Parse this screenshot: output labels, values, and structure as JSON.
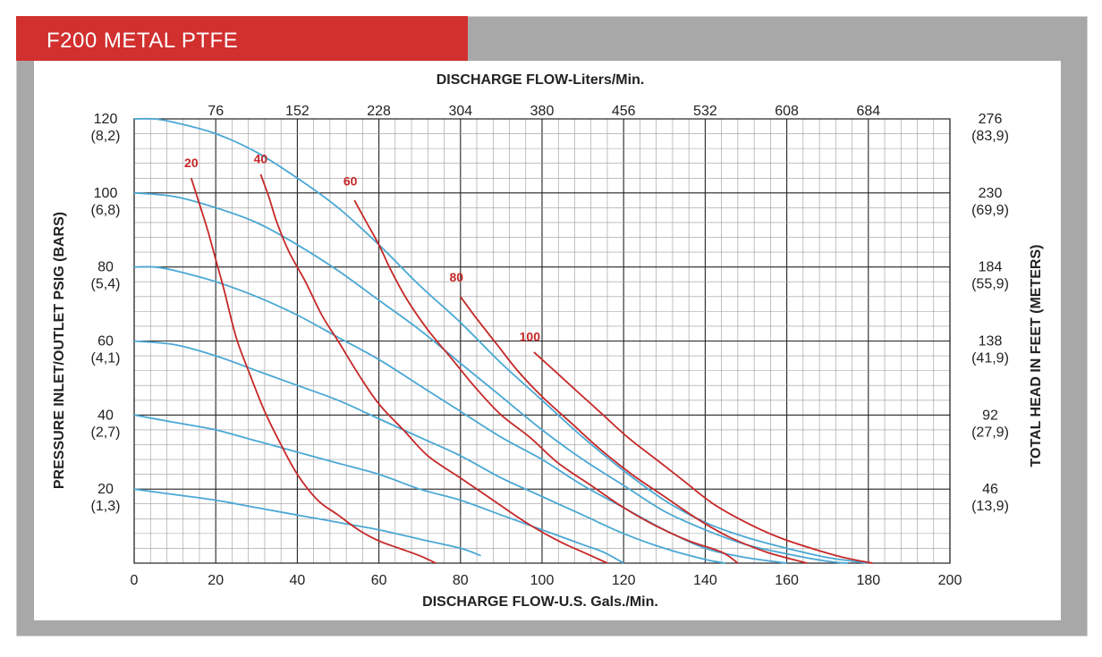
{
  "title": "F200 METAL PTFE",
  "colors": {
    "title_bg": "#d22f2f",
    "frame": "#a8a8a8",
    "grid": "#000000",
    "blue": "#4aa8d4",
    "red": "#c62828"
  },
  "chart_data": {
    "type": "line",
    "top_axis_label": "DISCHARGE FLOW-Liters/Min.",
    "top_ticks": [
      "76",
      "152",
      "228",
      "304",
      "380",
      "456",
      "532",
      "608",
      "684"
    ],
    "xlabel": "DISCHARGE FLOW-U.S. Gals./Min.",
    "x_ticks": [
      "0",
      "20",
      "40",
      "60",
      "80",
      "100",
      "120",
      "140",
      "160",
      "180",
      "200"
    ],
    "xlim": [
      0,
      200
    ],
    "ylabel_left": "PRESSURE INLET/OUTLET PSIG (BARS)",
    "left_ticks": [
      {
        "value": "120",
        "sub": "(8,2)"
      },
      {
        "value": "100",
        "sub": "(6,8)"
      },
      {
        "value": "80",
        "sub": "(5,4)"
      },
      {
        "value": "60",
        "sub": "(4,1)"
      },
      {
        "value": "40",
        "sub": "(2,7)"
      },
      {
        "value": "20",
        "sub": "(1,3)"
      }
    ],
    "ylim": [
      0,
      120
    ],
    "ylabel_right": "TOTAL HEAD IN FEET (METERS)",
    "right_ticks": [
      {
        "value": "276",
        "sub": "(83,9)"
      },
      {
        "value": "230",
        "sub": "(69,9)"
      },
      {
        "value": "184",
        "sub": "(55,9)"
      },
      {
        "value": "138",
        "sub": "(41,9)"
      },
      {
        "value": "92",
        "sub": "(27,9)"
      },
      {
        "value": "46",
        "sub": "(13,9)"
      }
    ],
    "grid": true,
    "pressure_curves": [
      {
        "points": [
          [
            0,
            120
          ],
          [
            5,
            120
          ],
          [
            10,
            119
          ],
          [
            20,
            116
          ],
          [
            30,
            111
          ],
          [
            40,
            104
          ],
          [
            50,
            96
          ],
          [
            60,
            86
          ],
          [
            70,
            75
          ],
          [
            80,
            65
          ],
          [
            90,
            54
          ],
          [
            100,
            44
          ],
          [
            110,
            34
          ],
          [
            120,
            25
          ],
          [
            130,
            17
          ],
          [
            140,
            11
          ],
          [
            150,
            7
          ],
          [
            160,
            4
          ],
          [
            170,
            1.5
          ],
          [
            180,
            0
          ]
        ]
      },
      {
        "points": [
          [
            0,
            100
          ],
          [
            10,
            99
          ],
          [
            20,
            96
          ],
          [
            30,
            92
          ],
          [
            40,
            86
          ],
          [
            50,
            79
          ],
          [
            60,
            71
          ],
          [
            70,
            63
          ],
          [
            80,
            54
          ],
          [
            90,
            45
          ],
          [
            100,
            36
          ],
          [
            110,
            28
          ],
          [
            120,
            21
          ],
          [
            130,
            14
          ],
          [
            140,
            9
          ],
          [
            150,
            5
          ],
          [
            160,
            2.5
          ],
          [
            170,
            0.5
          ],
          [
            175,
            0
          ]
        ]
      },
      {
        "points": [
          [
            0,
            80
          ],
          [
            5,
            80
          ],
          [
            10,
            79
          ],
          [
            20,
            76
          ],
          [
            30,
            72
          ],
          [
            40,
            67
          ],
          [
            50,
            61
          ],
          [
            60,
            55
          ],
          [
            70,
            48
          ],
          [
            80,
            41
          ],
          [
            90,
            34
          ],
          [
            100,
            28
          ],
          [
            110,
            21
          ],
          [
            120,
            15
          ],
          [
            130,
            9
          ],
          [
            140,
            4
          ],
          [
            150,
            1.5
          ],
          [
            160,
            0
          ]
        ]
      },
      {
        "points": [
          [
            0,
            60
          ],
          [
            10,
            59
          ],
          [
            20,
            56
          ],
          [
            30,
            52
          ],
          [
            40,
            48
          ],
          [
            50,
            44
          ],
          [
            60,
            39
          ],
          [
            70,
            34
          ],
          [
            80,
            29
          ],
          [
            90,
            23
          ],
          [
            100,
            18
          ],
          [
            110,
            13
          ],
          [
            120,
            8
          ],
          [
            130,
            4
          ],
          [
            140,
            1
          ],
          [
            145,
            0
          ]
        ]
      },
      {
        "points": [
          [
            0,
            40
          ],
          [
            10,
            38
          ],
          [
            20,
            36
          ],
          [
            30,
            33
          ],
          [
            40,
            30
          ],
          [
            50,
            27
          ],
          [
            60,
            24
          ],
          [
            70,
            20
          ],
          [
            80,
            17
          ],
          [
            90,
            13
          ],
          [
            100,
            9
          ],
          [
            110,
            5
          ],
          [
            115,
            3
          ],
          [
            120,
            0
          ]
        ]
      },
      {
        "points": [
          [
            0,
            20
          ],
          [
            10,
            18.5
          ],
          [
            20,
            17
          ],
          [
            30,
            15
          ],
          [
            40,
            13
          ],
          [
            50,
            11
          ],
          [
            60,
            9
          ],
          [
            70,
            6.5
          ],
          [
            80,
            4
          ],
          [
            85,
            2
          ]
        ]
      }
    ],
    "air_curves": [
      {
        "name": "20",
        "label_at": [
          14,
          107
        ],
        "points": [
          [
            14,
            104
          ],
          [
            16,
            97
          ],
          [
            18,
            90
          ],
          [
            20,
            82
          ],
          [
            22,
            74
          ],
          [
            25,
            61
          ],
          [
            28,
            52
          ],
          [
            32,
            41
          ],
          [
            36,
            32
          ],
          [
            40,
            24
          ],
          [
            45,
            17
          ],
          [
            50,
            13
          ],
          [
            55,
            9
          ],
          [
            60,
            6
          ],
          [
            65,
            4
          ],
          [
            70,
            2
          ],
          [
            74,
            0
          ]
        ]
      },
      {
        "name": "40",
        "label_at": [
          31,
          108
        ],
        "points": [
          [
            31,
            105
          ],
          [
            33,
            99
          ],
          [
            35,
            92
          ],
          [
            38,
            84
          ],
          [
            42,
            76
          ],
          [
            46,
            67
          ],
          [
            50,
            60
          ],
          [
            55,
            51
          ],
          [
            60,
            43
          ],
          [
            66,
            36
          ],
          [
            72,
            29
          ],
          [
            80,
            23
          ],
          [
            88,
            17
          ],
          [
            96,
            11
          ],
          [
            104,
            6
          ],
          [
            110,
            3
          ],
          [
            116,
            0
          ]
        ]
      },
      {
        "name": "60",
        "label_at": [
          53,
          102
        ],
        "points": [
          [
            54,
            98
          ],
          [
            57,
            92
          ],
          [
            60,
            86
          ],
          [
            63,
            79
          ],
          [
            67,
            71
          ],
          [
            72,
            63
          ],
          [
            78,
            55
          ],
          [
            84,
            47
          ],
          [
            90,
            40
          ],
          [
            97,
            34
          ],
          [
            104,
            27
          ],
          [
            112,
            21
          ],
          [
            120,
            15
          ],
          [
            128,
            10
          ],
          [
            136,
            6
          ],
          [
            144,
            3
          ],
          [
            148,
            0
          ]
        ]
      },
      {
        "name": "80",
        "label_at": [
          79,
          76
        ],
        "points": [
          [
            80,
            72
          ],
          [
            84,
            66
          ],
          [
            89,
            59
          ],
          [
            94,
            52
          ],
          [
            100,
            45
          ],
          [
            107,
            38
          ],
          [
            114,
            31
          ],
          [
            122,
            24
          ],
          [
            130,
            18
          ],
          [
            138,
            12
          ],
          [
            146,
            7
          ],
          [
            155,
            3
          ],
          [
            165,
            0
          ]
        ]
      },
      {
        "name": "100",
        "label_at": [
          97,
          60
        ],
        "points": [
          [
            98,
            57
          ],
          [
            103,
            52
          ],
          [
            109,
            46
          ],
          [
            115,
            40
          ],
          [
            121,
            34
          ],
          [
            128,
            28
          ],
          [
            135,
            22
          ],
          [
            142,
            16
          ],
          [
            150,
            11
          ],
          [
            158,
            7
          ],
          [
            166,
            4
          ],
          [
            174,
            1.5
          ],
          [
            181,
            0
          ]
        ]
      }
    ]
  }
}
